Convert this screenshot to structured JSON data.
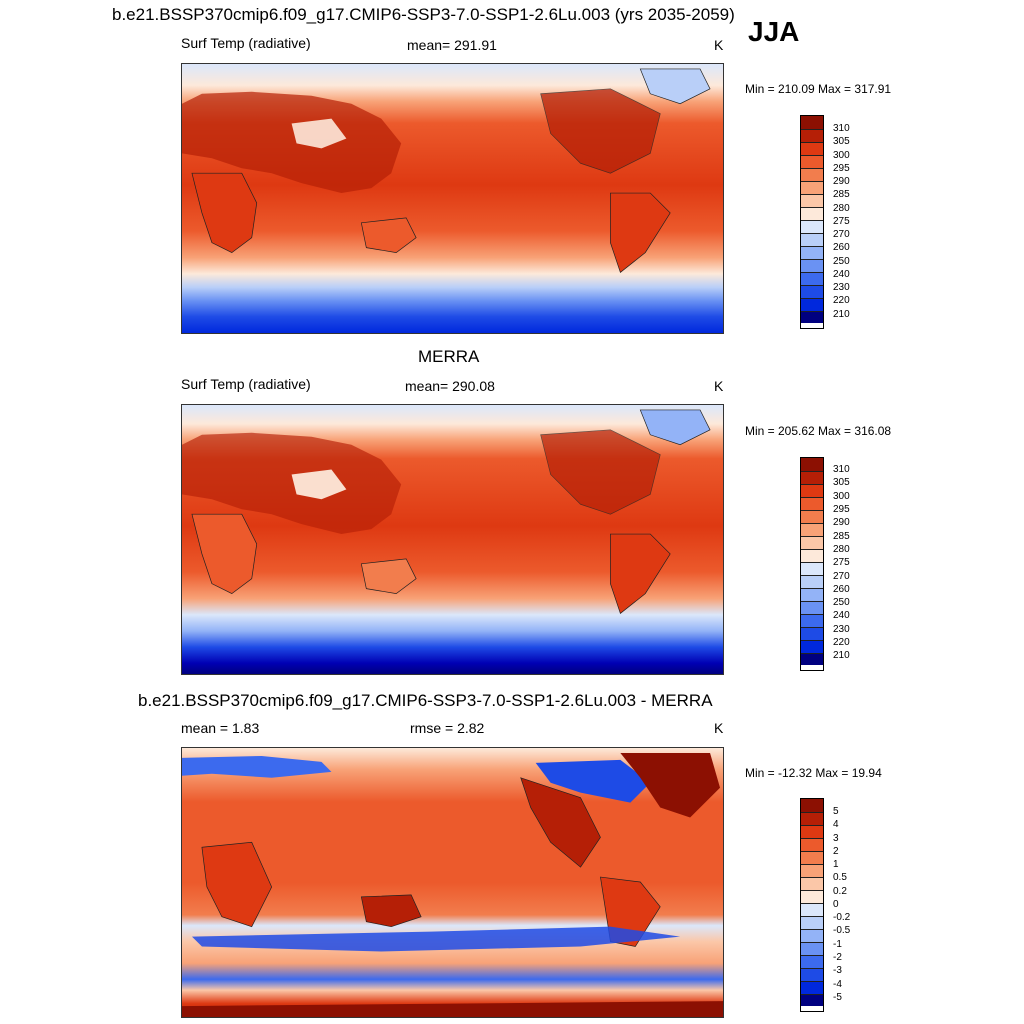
{
  "season": "JJA",
  "units": "K",
  "palettes": {
    "abs": [
      "#000080",
      "#0000b3",
      "#0028dd",
      "#1e4be6",
      "#3c6aee",
      "#6a92f3",
      "#93b3f7",
      "#b9cff8",
      "#dbe7fb",
      "#fde9da",
      "#fbc7a8",
      "#f8a277",
      "#f27d4d",
      "#ec5a2c",
      "#de3912",
      "#b51f06",
      "#8c1002"
    ],
    "diff": [
      "#000080",
      "#0000b3",
      "#0028dd",
      "#1e4be6",
      "#3c6aee",
      "#6a92f3",
      "#93b3f7",
      "#b9cff8",
      "#dbe7fb",
      "#fde9da",
      "#fbc7a8",
      "#f8a277",
      "#f27d4d",
      "#ec5a2c",
      "#de3912",
      "#b51f06",
      "#8c1002"
    ]
  },
  "panels": [
    {
      "title": "b.e21.BSSP370cmip6.f09_g17.CMIP6-SSP3-7.0-SSP1-2.6Lu.003 (yrs 2035-2059)",
      "left_label": "Surf Temp (radiative)",
      "center_label": "mean= 291.91",
      "units": "K",
      "minmax": "Min = 210.09 Max = 317.91",
      "ticks": [
        "310",
        "305",
        "300",
        "295",
        "290",
        "285",
        "280",
        "275",
        "270",
        "260",
        "250",
        "240",
        "230",
        "220",
        "210"
      ]
    },
    {
      "title": "MERRA",
      "left_label": "Surf Temp (radiative)",
      "center_label": "mean= 290.08",
      "units": "K",
      "minmax": "Min = 205.62 Max = 316.08",
      "ticks": [
        "310",
        "305",
        "300",
        "295",
        "290",
        "285",
        "280",
        "275",
        "270",
        "260",
        "250",
        "240",
        "230",
        "220",
        "210"
      ]
    },
    {
      "title": "b.e21.BSSP370cmip6.f09_g17.CMIP6-SSP3-7.0-SSP1-2.6Lu.003 - MERRA",
      "left_label": "mean =   1.83",
      "center_label": "rmse =   2.82",
      "units": "K",
      "minmax": "Min = -12.32 Max =  19.94",
      "ticks": [
        "5",
        "4",
        "3",
        "2",
        "1",
        "0.5",
        "0.2",
        "0",
        "-0.2",
        "-0.5",
        "-1",
        "-2",
        "-3",
        "-4",
        "-5"
      ]
    }
  ]
}
